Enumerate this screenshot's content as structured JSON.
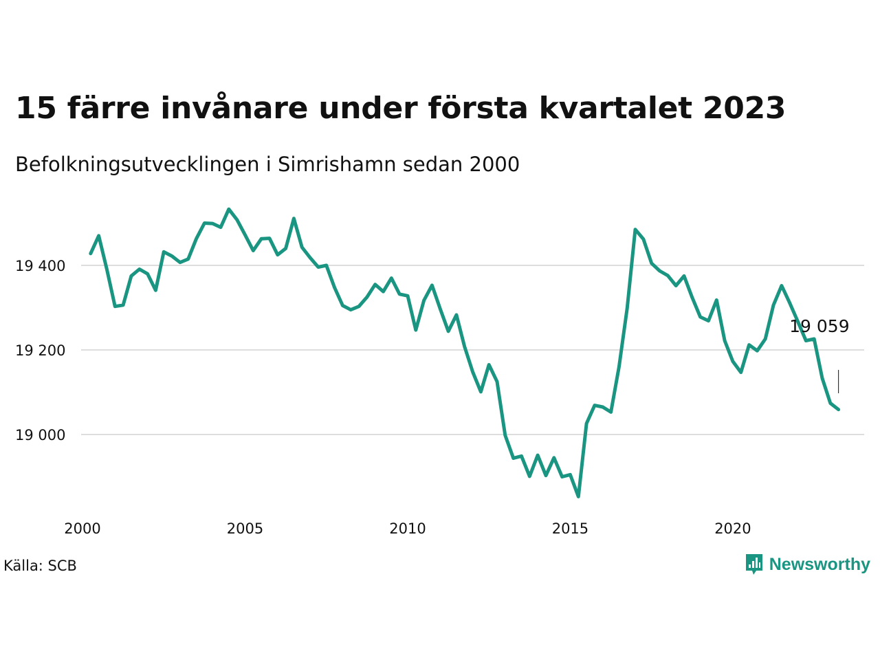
{
  "colors": {
    "line": "#1a9581",
    "grid": "#dddddd",
    "text": "#111111",
    "brand": "#1a9581"
  },
  "icons": {
    "brand_logo": "chart-bars-speech-bubble-icon"
  },
  "chart_header": {
    "title": "15 färre invånare under första kvartalet 2023",
    "subtitle": "Befolkningsutvecklingen i Simrishamn sedan 2000"
  },
  "footer": {
    "source": "Källa: SCB",
    "brand_name": "Newsworthy"
  },
  "chart_data": {
    "type": "line",
    "title": "15 färre invånare under första kvartalet 2023",
    "subtitle": "Befolkningsutvecklingen i Simrishamn sedan 2000",
    "xlabel": "",
    "ylabel": "",
    "xlim": [
      2000,
      2023.3
    ],
    "ylim": [
      18840,
      19550
    ],
    "grid": true,
    "x_ticks": [
      {
        "value": 2000,
        "label": "2000"
      },
      {
        "value": 2005,
        "label": "2005"
      },
      {
        "value": 2010,
        "label": "2010"
      },
      {
        "value": 2015,
        "label": "2015"
      },
      {
        "value": 2020,
        "label": "2020"
      }
    ],
    "y_ticks": [
      {
        "value": 19000,
        "label": "19 000"
      },
      {
        "value": 19200,
        "label": "19 200"
      },
      {
        "value": 19400,
        "label": "19 400"
      }
    ],
    "annotation": {
      "value": 19059,
      "label": "19 059"
    },
    "series": [
      {
        "x": [
          2000.25,
          2000.5,
          2000.75,
          2001.0,
          2001.25,
          2001.5,
          2001.75,
          2002.0,
          2002.25,
          2002.5,
          2002.75,
          2003.0,
          2003.25,
          2003.5,
          2003.75,
          2004.0,
          2004.25,
          2004.5,
          2004.75,
          2005.0,
          2005.25,
          2005.5,
          2005.75,
          2006.0,
          2006.25,
          2006.5,
          2006.75,
          2007.0,
          2007.25,
          2007.5,
          2007.75,
          2008.0,
          2008.25,
          2008.5,
          2008.75,
          2009.0,
          2009.25,
          2009.5,
          2009.75,
          2010.0,
          2010.25,
          2010.5,
          2010.75,
          2011.0,
          2011.25,
          2011.5,
          2011.75,
          2012.0,
          2012.25,
          2012.5,
          2012.75,
          2013.0,
          2013.25,
          2013.5,
          2013.75,
          2014.0,
          2014.25,
          2014.5,
          2014.75,
          2015.0,
          2015.25,
          2015.5,
          2015.75,
          2016.0,
          2016.25,
          2016.5,
          2016.75,
          2017.0,
          2017.25,
          2017.5,
          2017.75,
          2018.0,
          2018.25,
          2018.5,
          2018.75,
          2019.0,
          2019.25,
          2019.5,
          2019.75,
          2020.0,
          2020.25,
          2020.5,
          2020.75,
          2021.0,
          2021.25,
          2021.5,
          2021.75,
          2022.0,
          2022.25,
          2022.5,
          2022.75,
          2023.0,
          2023.25
        ],
        "y": [
          19428,
          19470,
          19390,
          19303,
          19306,
          19375,
          19391,
          19380,
          19341,
          19432,
          19422,
          19407,
          19415,
          19463,
          19500,
          19499,
          19490,
          19533,
          19508,
          19472,
          19435,
          19463,
          19464,
          19425,
          19440,
          19511,
          19443,
          19418,
          19396,
          19400,
          19348,
          19305,
          19295,
          19303,
          19325,
          19355,
          19338,
          19370,
          19332,
          19328,
          19247,
          19317,
          19353,
          19297,
          19244,
          19283,
          19208,
          19148,
          19101,
          19165,
          19125,
          18998,
          18944,
          18949,
          18901,
          18951,
          18903,
          18945,
          18900,
          18905,
          18853,
          19026,
          19069,
          19065,
          19053,
          19160,
          19298,
          19485,
          19462,
          19405,
          19387,
          19376,
          19352,
          19375,
          19324,
          19278,
          19269,
          19318,
          19222,
          19173,
          19147,
          19212,
          19198,
          19226,
          19306,
          19352,
          19311,
          19267,
          19222,
          19226,
          19133,
          19074,
          19059
        ]
      }
    ]
  }
}
